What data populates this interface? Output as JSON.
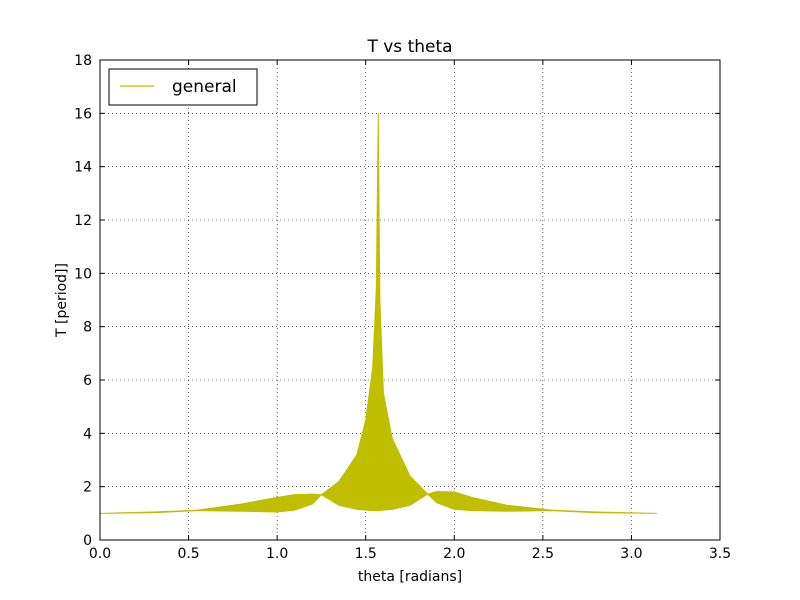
{
  "chart_data": {
    "type": "area",
    "title": "T vs theta",
    "xlabel": "theta [radians]",
    "ylabel": "T [period]]",
    "xlim": [
      0.0,
      3.5
    ],
    "ylim": [
      0,
      18
    ],
    "grid": true,
    "legend_position": "upper-left",
    "x_tick_labels": [
      "0.0",
      "0.5",
      "1.0",
      "1.5",
      "2.0",
      "2.5",
      "3.0",
      "3.5"
    ],
    "x_ticks": [
      0.0,
      0.5,
      1.0,
      1.5,
      2.0,
      2.5,
      3.0,
      3.5
    ],
    "y_tick_labels": [
      "0",
      "2",
      "4",
      "6",
      "8",
      "10",
      "12",
      "14",
      "16",
      "18"
    ],
    "y_ticks": [
      0,
      2,
      4,
      6,
      8,
      10,
      12,
      14,
      16,
      18
    ],
    "series": [
      {
        "name": "general",
        "color": "#bfbf00",
        "x": [
          0.0,
          0.3,
          0.55,
          0.8,
          1.0,
          1.1,
          1.2,
          1.25,
          1.35,
          1.45,
          1.5,
          1.54,
          1.56,
          1.5708,
          1.58,
          1.6,
          1.65,
          1.75,
          1.85,
          1.9,
          2.0,
          2.1,
          2.3,
          2.55,
          2.8,
          3.1416
        ],
        "upper": [
          1.0,
          1.05,
          1.12,
          1.35,
          1.6,
          1.7,
          1.72,
          1.7,
          2.2,
          3.2,
          4.5,
          6.5,
          9.5,
          16.0,
          9.0,
          5.5,
          3.8,
          2.4,
          1.72,
          1.82,
          1.8,
          1.6,
          1.3,
          1.12,
          1.05,
          1.0
        ],
        "lower": [
          1.0,
          1.02,
          1.1,
          1.08,
          1.05,
          1.12,
          1.35,
          1.7,
          1.3,
          1.15,
          1.12,
          1.1,
          1.1,
          1.1,
          1.1,
          1.12,
          1.15,
          1.3,
          1.72,
          1.4,
          1.15,
          1.1,
          1.08,
          1.1,
          1.02,
          1.0
        ]
      }
    ]
  }
}
